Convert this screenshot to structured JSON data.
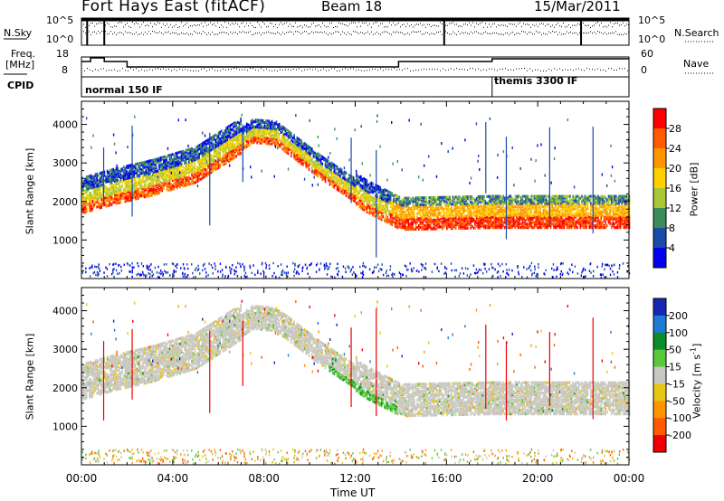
{
  "header": {
    "title": "Fort Hays East (fitACF)",
    "beam": "Beam 18",
    "date": "15/Mar/2011"
  },
  "top_panel": {
    "nsky_label": "N.Sky",
    "nsearch_label": "N.Search",
    "freq_label": "Freq.",
    "freq_unit": "[MHz]",
    "nave_label": "Nave",
    "cpid_label": "CPID",
    "noise_ticks": [
      "10^5",
      "10^0"
    ],
    "freq_ticks": [
      "18",
      "8"
    ],
    "nave_ticks": [
      "60",
      "0"
    ],
    "cpid_modes": [
      "normal 150 IF",
      "themis 3300 IF"
    ]
  },
  "colorbars": {
    "power": {
      "label": "Power [dB]",
      "ticks": [
        "28",
        "24",
        "20",
        "16",
        "12",
        "8",
        "4"
      ],
      "colors": [
        "#ff0000",
        "#ff5a00",
        "#ff9600",
        "#ffd000",
        "#a8c838",
        "#3c8c5a",
        "#1a4aaa",
        "#0000ee"
      ]
    },
    "velocity": {
      "label": "Velocity [m s",
      "label_sup": "-1",
      "label_end": "]",
      "ticks": [
        "200",
        "100",
        "50",
        "15",
        "-15",
        "-50",
        "-100",
        "-200"
      ],
      "colors": [
        "#1428b4",
        "#1e7ad2",
        "#0c8c28",
        "#5ac83c",
        "#c8c8c0",
        "#e6c814",
        "#ff9600",
        "#ff5a00",
        "#ee0000"
      ]
    }
  },
  "chart_data": [
    {
      "type": "heatmap",
      "title": "Power",
      "xlabel": "Time UT",
      "ylabel": "Slant Range [km]",
      "xlim": [
        "00:00",
        "24:00"
      ],
      "ylim": [
        0,
        4600
      ],
      "xticks": [
        "00:00",
        "04:00",
        "08:00",
        "12:00",
        "16:00",
        "20:00",
        "00:00"
      ],
      "yticks": [
        1000,
        2000,
        3000,
        4000
      ],
      "scale_label": "Power [dB]",
      "scale_ticks": [
        4,
        8,
        12,
        16,
        20,
        24,
        28
      ],
      "echo_band_ridge_km": [
        {
          "t": 0.0,
          "km": 2000
        },
        {
          "t": 1.5,
          "km": 2250
        },
        {
          "t": 3.0,
          "km": 2450
        },
        {
          "t": 5.0,
          "km": 2800
        },
        {
          "t": 7.5,
          "km": 3750
        },
        {
          "t": 8.5,
          "km": 3700
        },
        {
          "t": 10.5,
          "km": 2800
        },
        {
          "t": 12.5,
          "km": 2000
        },
        {
          "t": 14.0,
          "km": 1550
        },
        {
          "t": 18.0,
          "km": 1600
        },
        {
          "t": 24.0,
          "km": 1600
        }
      ]
    },
    {
      "type": "heatmap",
      "title": "Velocity",
      "xlabel": "Time UT",
      "ylabel": "Slant Range [km]",
      "xlim": [
        "00:00",
        "24:00"
      ],
      "ylim": [
        0,
        4600
      ],
      "xticks": [
        "00:00",
        "04:00",
        "08:00",
        "12:00",
        "16:00",
        "20:00",
        "00:00"
      ],
      "yticks": [
        1000,
        2000,
        3000,
        4000
      ],
      "scale_label": "Velocity [m s-1]",
      "scale_ticks": [
        -200,
        -100,
        -50,
        -15,
        15,
        50,
        100,
        200
      ]
    }
  ],
  "axis": {
    "xlabel": "Time UT",
    "xticks": [
      "00:00",
      "04:00",
      "08:00",
      "12:00",
      "16:00",
      "20:00",
      "00:00"
    ],
    "ylabel": "Slant Range [km]",
    "yticks": [
      "1000",
      "2000",
      "3000",
      "4000"
    ]
  }
}
